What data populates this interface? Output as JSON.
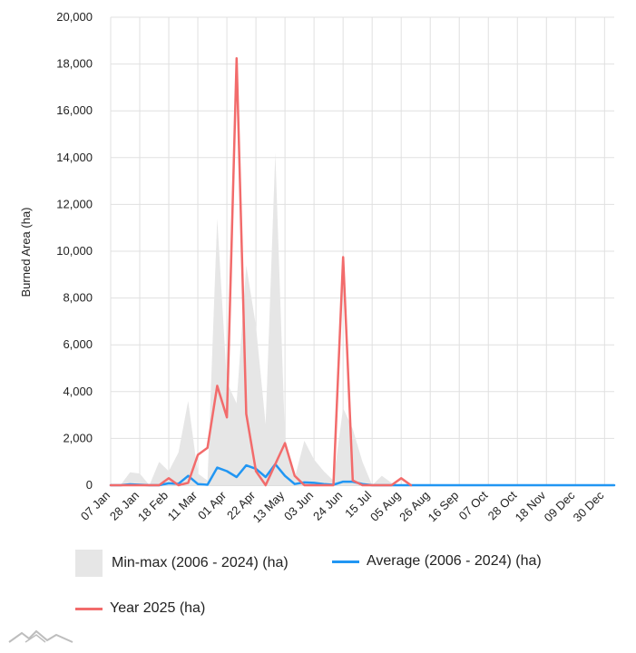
{
  "chart_data": {
    "type": "line",
    "ylabel": "Burned Area (ha)",
    "ylim": [
      0,
      20000
    ],
    "y_ticks": [
      "0",
      "2,000",
      "4,000",
      "6,000",
      "8,000",
      "10,000",
      "12,000",
      "14,000",
      "16,000",
      "18,000",
      "20,000"
    ],
    "x_tick_labels": [
      "07 Jan",
      "28 Jan",
      "18 Feb",
      "11 Mar",
      "01 Apr",
      "22 Apr",
      "13 May",
      "03 Jun",
      "24 Jun",
      "15 Jul",
      "05 Aug",
      "26 Aug",
      "16 Sep",
      "07 Oct",
      "28 Oct",
      "18 Nov",
      "09 Dec",
      "30 Dec"
    ],
    "weeks_per_tick": 3,
    "grid": true,
    "legend_placement": "bottom",
    "series": [
      {
        "name": "Min-max (2006 - 2024) (ha)",
        "kind": "range",
        "color": "#e6e6e6",
        "max": [
          0,
          0,
          550,
          500,
          0,
          1000,
          600,
          1400,
          3600,
          500,
          200,
          11400,
          4400,
          3500,
          9400,
          6800,
          2600,
          14200,
          2000,
          300,
          1900,
          1100,
          600,
          200,
          3300,
          2400,
          1000,
          0,
          400,
          100,
          0,
          0,
          0,
          0,
          0,
          0,
          0,
          0,
          0,
          0,
          0,
          0,
          0,
          0,
          0,
          0,
          0,
          0,
          0,
          0,
          0,
          0,
          0
        ],
        "min": [
          0,
          0,
          0,
          0,
          0,
          0,
          0,
          0,
          0,
          0,
          0,
          0,
          0,
          0,
          0,
          0,
          0,
          0,
          0,
          0,
          0,
          0,
          0,
          0,
          0,
          0,
          0,
          0,
          0,
          0,
          0,
          0,
          0,
          0,
          0,
          0,
          0,
          0,
          0,
          0,
          0,
          0,
          0,
          0,
          0,
          0,
          0,
          0,
          0,
          0,
          0,
          0,
          0
        ]
      },
      {
        "name": "Average (2006 - 2024) (ha)",
        "kind": "line",
        "color": "#2196f3",
        "values": [
          0,
          0,
          40,
          20,
          0,
          0,
          80,
          60,
          400,
          50,
          20,
          750,
          600,
          350,
          850,
          700,
          350,
          900,
          400,
          50,
          120,
          100,
          50,
          20,
          150,
          150,
          50,
          0,
          0,
          0,
          0,
          0,
          0,
          0,
          0,
          0,
          0,
          0,
          0,
          0,
          0,
          0,
          0,
          0,
          0,
          0,
          0,
          0,
          0,
          0,
          0,
          0,
          0
        ]
      },
      {
        "name": "Year 2025 (ha)",
        "kind": "line",
        "color": "#f26b6b",
        "values": [
          0,
          0,
          0,
          0,
          0,
          0,
          300,
          0,
          100,
          1300,
          1600,
          4250,
          2900,
          18250,
          3050,
          600,
          0,
          900,
          1800,
          400,
          0,
          0,
          0,
          0,
          9750,
          200,
          0,
          0,
          0,
          0,
          300,
          0
        ]
      }
    ]
  }
}
